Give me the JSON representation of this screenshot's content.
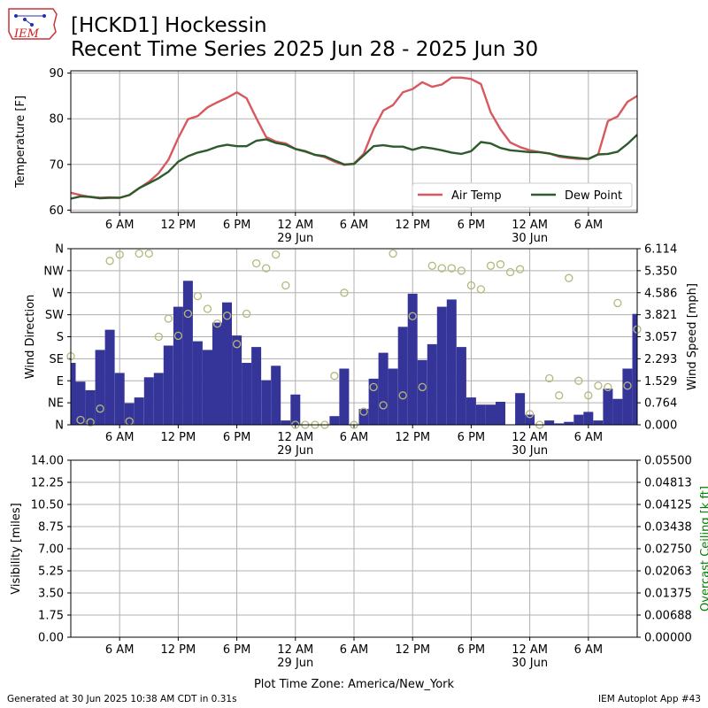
{
  "header": {
    "logo_text": "IEM",
    "title_line1": "[HCKD1] Hockessin",
    "title_line2": "Recent Time Series 2025 Jun 28 - 2025 Jun 30"
  },
  "footer": {
    "generated": "Generated at 30 Jun 2025 10:38 AM CDT in 0.31s",
    "app": "IEM Autoplot App #43"
  },
  "colors": {
    "air_temp": "#d9585f",
    "dew_point": "#2d5b2d",
    "wind_speed_bars": "#353599",
    "wind_dir_markers": "#b5b879",
    "ceiling_axis": "#008000",
    "grid": "#b0b0b0"
  },
  "chart_data": [
    {
      "type": "line",
      "panel": "temperature",
      "ylabel": "Temperature [F]",
      "ylim": [
        59.5,
        90.5
      ],
      "yticks": [
        60,
        70,
        80,
        90
      ],
      "x_unit": "hours after 2025-06-28 01:00 (America/New_York)",
      "xlim": [
        0,
        58
      ],
      "xticks": [
        5,
        11,
        17,
        23,
        29,
        35,
        41,
        47,
        53
      ],
      "xtick_labels": [
        "6 AM",
        "12 PM",
        "6 PM",
        "12 AM\n29 Jun",
        "6 AM",
        "12 PM",
        "6 PM",
        "12 AM\n30 Jun",
        "6 AM"
      ],
      "grid": true,
      "legend": {
        "position": "lower-right",
        "entries": [
          "Air Temp",
          "Dew Point"
        ]
      },
      "series": [
        {
          "name": "Air Temp",
          "values": [
            63.8,
            63.3,
            62.9,
            62.7,
            62.8,
            62.7,
            63.3,
            64.8,
            66.2,
            68.1,
            71.0,
            75.8,
            79.9,
            80.6,
            82.5,
            83.6,
            84.6,
            85.8,
            84.5,
            80.1,
            76.0,
            75.0,
            74.6,
            73.4,
            72.8,
            72.1,
            71.6,
            70.6,
            69.9,
            70.2,
            72.3,
            77.7,
            81.8,
            83.0,
            85.8,
            86.5,
            88.0,
            87.0,
            87.5,
            89.0,
            89.0,
            88.7,
            87.6,
            81.4,
            77.7,
            74.8,
            73.8,
            73.1,
            72.7,
            72.4,
            71.7,
            71.4,
            71.2,
            71.2,
            72.2,
            79.5,
            80.5,
            83.7,
            85.0
          ]
        },
        {
          "name": "Dew Point",
          "values": [
            62.5,
            63.0,
            62.9,
            62.6,
            62.7,
            62.7,
            63.3,
            64.8,
            65.9,
            67.0,
            68.4,
            70.6,
            71.8,
            72.6,
            73.1,
            73.9,
            74.3,
            74.0,
            74.0,
            75.2,
            75.5,
            74.7,
            74.3,
            73.4,
            72.9,
            72.1,
            71.8,
            70.9,
            70.0,
            70.1,
            72.0,
            74.0,
            74.2,
            73.9,
            73.9,
            73.2,
            73.8,
            73.5,
            73.1,
            72.6,
            72.3,
            72.9,
            74.9,
            74.6,
            73.6,
            73.1,
            72.9,
            72.7,
            72.7,
            72.4,
            71.9,
            71.6,
            71.4,
            71.2,
            72.2,
            72.3,
            72.8,
            74.5,
            76.5
          ]
        }
      ]
    },
    {
      "type": "bar",
      "panel": "wind",
      "ylabel": "Wind Direction",
      "ylabel_right": "Wind Speed [mph]",
      "ylim_left": [
        0,
        360
      ],
      "yticks_left": [
        "N",
        "NE",
        "E",
        "SE",
        "S",
        "SW",
        "W",
        "NW",
        "N"
      ],
      "ylim_right": [
        0,
        6.114
      ],
      "yticks_right": [
        "0.000",
        "0.764",
        "1.529",
        "2.293",
        "3.057",
        "3.821",
        "4.586",
        "5.350",
        "6.114"
      ],
      "xlim": [
        0,
        58
      ],
      "xticks": [
        5,
        11,
        17,
        23,
        29,
        35,
        41,
        47,
        53
      ],
      "xtick_labels": [
        "6 AM",
        "12 PM",
        "6 PM",
        "12 AM\n29 Jun",
        "6 AM",
        "12 PM",
        "6 PM",
        "12 AM\n30 Jun",
        "6 AM"
      ],
      "grid": true,
      "series": [
        {
          "name": "Wind Speed",
          "values": [
            2.15,
            1.5,
            1.2,
            2.6,
            3.3,
            1.8,
            0.75,
            0.95,
            1.65,
            1.8,
            2.75,
            4.1,
            5.0,
            2.9,
            2.6,
            3.55,
            4.25,
            3.1,
            2.15,
            2.7,
            1.55,
            2.05,
            0.15,
            1.05,
            0.0,
            0.0,
            0.0,
            0.3,
            1.95,
            0.0,
            0.55,
            1.6,
            2.5,
            1.95,
            3.4,
            4.55,
            2.25,
            2.8,
            4.1,
            4.35,
            2.7,
            0.95,
            0.7,
            0.7,
            0.8,
            0.0,
            1.1,
            0.35,
            0.0,
            0.15,
            0.05,
            0.1,
            0.35,
            0.45,
            0.15,
            1.25,
            0.9,
            1.95,
            3.85
          ]
        },
        {
          "name": "Wind Direction",
          "values": [
            140,
            10,
            5,
            33,
            335,
            348,
            7,
            350,
            350,
            180,
            217,
            182,
            227,
            263,
            237,
            207,
            223,
            165,
            227,
            330,
            320,
            348,
            285,
            0,
            0,
            0,
            0,
            100,
            270,
            0,
            27,
            77,
            40,
            350,
            60,
            222,
            77,
            325,
            320,
            320,
            315,
            285,
            277,
            325,
            328,
            312,
            318,
            22,
            0,
            95,
            60,
            300,
            90,
            60,
            80,
            77,
            249,
            80,
            195
          ]
        }
      ]
    },
    {
      "type": "line",
      "panel": "visibility",
      "ylabel": "Visibility [miles]",
      "ylabel_right": "Overcast Ceiling [k ft]",
      "ylim_left": [
        0,
        14
      ],
      "yticks_left": [
        "0.00",
        "1.75",
        "3.50",
        "5.25",
        "7.00",
        "8.75",
        "10.50",
        "12.25",
        "14.00"
      ],
      "ylim_right": [
        0,
        0.055
      ],
      "yticks_right": [
        "0.00000",
        "0.00688",
        "0.01375",
        "0.02063",
        "0.02750",
        "0.03438",
        "0.04125",
        "0.04813",
        "0.05500"
      ],
      "xlim": [
        0,
        58
      ],
      "xticks": [
        5,
        11,
        17,
        23,
        29,
        35,
        41,
        47,
        53
      ],
      "xtick_labels": [
        "6 AM",
        "12 PM",
        "6 PM",
        "12 AM\n29 Jun",
        "6 AM",
        "12 PM",
        "6 PM",
        "12 AM\n30 Jun",
        "6 AM"
      ],
      "xlabel": "Plot Time Zone: America/New_York",
      "grid": true,
      "series": []
    }
  ]
}
